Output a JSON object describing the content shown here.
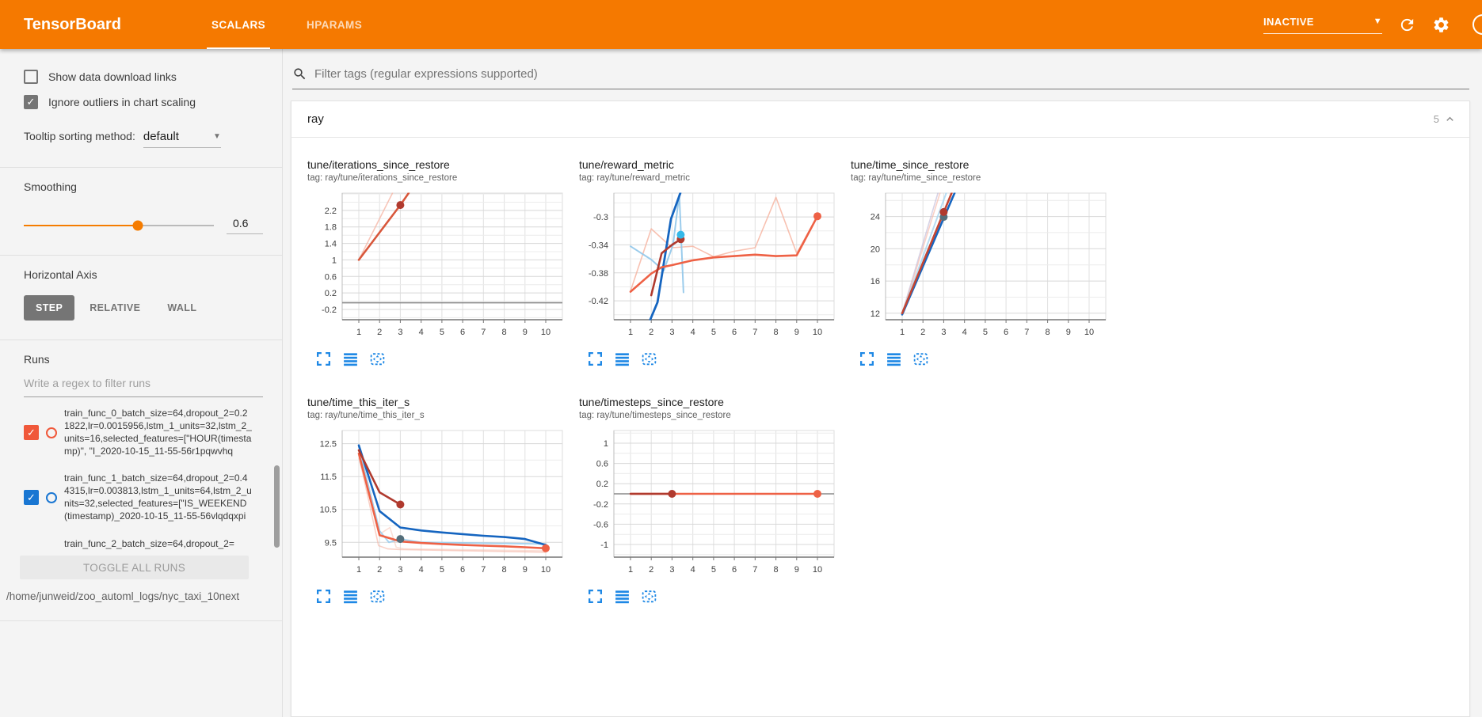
{
  "header": {
    "title": "TensorBoard",
    "tabs": [
      {
        "label": "SCALARS",
        "active": true
      },
      {
        "label": "HPARAMS",
        "active": false
      }
    ],
    "status": "INACTIVE"
  },
  "colors": {
    "header_bg": "#f57900",
    "accent_orange": "#f57c00",
    "icon_blue": "#1e88e5",
    "run0": "#ee6145",
    "run0_dark": "#b03a2e",
    "run1": "#1565c0",
    "run1_light": "#90c7ea"
  },
  "sidebar": {
    "checkboxes": [
      {
        "label": "Show data download links",
        "checked": false
      },
      {
        "label": "Ignore outliers in chart scaling",
        "checked": true
      }
    ],
    "tooltip_sorting": {
      "label": "Tooltip sorting method:",
      "value": "default"
    },
    "smoothing": {
      "label": "Smoothing",
      "value": "0.6",
      "percent": 60
    },
    "horizontal_axis": {
      "label": "Horizontal Axis",
      "options": [
        {
          "label": "STEP",
          "active": true
        },
        {
          "label": "RELATIVE",
          "active": false
        },
        {
          "label": "WALL",
          "active": false
        }
      ]
    },
    "runs": {
      "label": "Runs",
      "filter_placeholder": "Write a regex to filter runs",
      "items": [
        {
          "name": "train_func_0_batch_size=64,dropout_2=0.21822,lr=0.0015956,lstm_1_units=32,lstm_2_units=16,selected_features=[\"HOUR(timestamp)\", \"I_2020-10-15_11-55-56r1pqwvhq",
          "checked": true,
          "color": "#f0583a"
        },
        {
          "name": "train_func_1_batch_size=64,dropout_2=0.44315,lr=0.003813,lstm_1_units=64,lstm_2_units=32,selected_features=[\"IS_WEEKEND(timestamp)_2020-10-15_11-55-56vlqdqxpi",
          "checked": true,
          "color": "#1976d2"
        },
        {
          "name": "train_func_2_batch_size=64,dropout_2=",
          "checked": null,
          "color": "#9e9e9e"
        }
      ],
      "toggle_all_label": "TOGGLE ALL RUNS",
      "log_path": "/home/junweid/zoo_automl_logs/nyc_taxi_10next"
    }
  },
  "main": {
    "filter_placeholder": "Filter tags (regular expressions supported)",
    "section": {
      "title": "ray",
      "count": "5"
    }
  },
  "chart_data": [
    {
      "type": "line",
      "name": "tune/iterations_since_restore",
      "tag": "tag: ray/tune/iterations_since_restore",
      "xticks": [
        1,
        2,
        3,
        4,
        5,
        6,
        7,
        8,
        9,
        10
      ],
      "ylim": [
        -0.45,
        2.62
      ],
      "yticks": [
        2.2,
        1.8,
        1.4,
        1,
        0.6,
        0.2,
        -0.2
      ],
      "series": [
        {
          "name": "run0-unsmoothed",
          "color": "#f5b3a1",
          "width": 1.6,
          "opacity": 0.75,
          "x": [
            1,
            2.62
          ],
          "y": [
            1,
            2.62
          ]
        },
        {
          "name": "run0-smoothed",
          "color": "#d8573b",
          "width": 2.6,
          "opacity": 1,
          "x": [
            1,
            3,
            3.4
          ],
          "y": [
            1,
            2.33,
            2.62
          ],
          "dot": {
            "x": 3,
            "y": 2.33,
            "color": "#b03a2e"
          }
        },
        {
          "name": "flat-zero",
          "color": "#8a8a8a",
          "width": 1.6,
          "opacity": 1,
          "x": [
            0.2,
            10.8
          ],
          "y": [
            -0.04,
            -0.04
          ]
        }
      ]
    },
    {
      "type": "line",
      "name": "tune/reward_metric",
      "tag": "tag: ray/tune/reward_metric",
      "xticks": [
        1,
        2,
        3,
        4,
        5,
        6,
        7,
        8,
        9,
        10
      ],
      "ylim": [
        -0.447,
        -0.266
      ],
      "yticks": [
        -0.3,
        -0.34,
        -0.38,
        -0.42
      ],
      "series": [
        {
          "name": "run0-unsmoothed",
          "color": "#f6b29e",
          "width": 1.6,
          "opacity": 0.8,
          "x": [
            1,
            2,
            3,
            4,
            5,
            6,
            7,
            8,
            9,
            10
          ],
          "y": [
            -0.406,
            -0.317,
            -0.344,
            -0.342,
            -0.357,
            -0.349,
            -0.344,
            -0.272,
            -0.352,
            -0.299
          ]
        },
        {
          "name": "run1-unsmoothed",
          "color": "#90c7ea",
          "width": 2,
          "opacity": 0.9,
          "x": [
            1,
            2,
            2.6,
            3.05,
            3.35,
            3.55
          ],
          "y": [
            -0.342,
            -0.361,
            -0.377,
            -0.34,
            -0.268,
            -0.408
          ]
        },
        {
          "name": "run1-smoothed",
          "color": "#1565c0",
          "width": 2.8,
          "opacity": 1,
          "x": [
            1.95,
            2.3,
            2.95,
            3.4
          ],
          "y": [
            -0.447,
            -0.422,
            -0.303,
            -0.266
          ]
        },
        {
          "name": "run0-smoothed",
          "color": "#ee6145",
          "width": 2.6,
          "opacity": 1,
          "x": [
            1,
            2,
            2.5,
            3,
            4,
            5,
            6,
            7,
            8,
            9,
            10
          ],
          "y": [
            -0.407,
            -0.381,
            -0.372,
            -0.369,
            -0.362,
            -0.358,
            -0.356,
            -0.354,
            -0.356,
            -0.355,
            -0.299
          ],
          "dot": {
            "x": 10,
            "y": -0.299,
            "color": "#ee6145"
          }
        },
        {
          "name": "run0-smoothed-head",
          "color": "#b03a2e",
          "width": 2.6,
          "opacity": 1,
          "x": [
            2,
            2.5,
            3,
            3.42
          ],
          "y": [
            -0.412,
            -0.352,
            -0.34,
            -0.332
          ],
          "dot": {
            "x": 3.42,
            "y": -0.332,
            "color": "#b03a2e"
          }
        }
      ],
      "dots": [
        {
          "x": 3.42,
          "y": -0.3255,
          "color": "#35b8e8"
        }
      ]
    },
    {
      "type": "line",
      "name": "tune/time_since_restore",
      "tag": "tag: ray/tune/time_since_restore",
      "xticks": [
        1,
        2,
        3,
        4,
        5,
        6,
        7,
        8,
        9,
        10
      ],
      "ylim": [
        11.2,
        26.9
      ],
      "yticks": [
        24,
        20,
        16,
        12
      ],
      "series": [
        {
          "name": "faded-lavender",
          "color": "#b7aed2",
          "width": 1.6,
          "opacity": 0.55,
          "x": [
            1,
            2.72
          ],
          "y": [
            12,
            26.9
          ]
        },
        {
          "name": "run0-unsmoothed",
          "color": "#f5b3a1",
          "width": 1.6,
          "opacity": 0.6,
          "x": [
            1.02,
            2.82
          ],
          "y": [
            12,
            26.9
          ]
        },
        {
          "name": "run1-unsmoothed",
          "color": "#a6d4f0",
          "width": 2,
          "opacity": 0.8,
          "x": [
            1,
            3.12
          ],
          "y": [
            12,
            26.9
          ]
        },
        {
          "name": "run1-smoothed",
          "color": "#1565c0",
          "width": 2.6,
          "opacity": 1,
          "x": [
            1,
            3.52
          ],
          "y": [
            11.85,
            26.9
          ],
          "dot": {
            "x": 3,
            "y": 23.95,
            "color": "#546e7a"
          }
        },
        {
          "name": "run0-smoothed",
          "color": "#c44532",
          "width": 2.6,
          "opacity": 1,
          "x": [
            1,
            3.38
          ],
          "y": [
            12,
            26.9
          ],
          "dot": {
            "x": 3,
            "y": 24.55,
            "color": "#b03a2e"
          }
        }
      ]
    },
    {
      "type": "line",
      "name": "tune/time_this_iter_s",
      "tag": "tag: ray/tune/time_this_iter_s",
      "xticks": [
        1,
        2,
        3,
        4,
        5,
        6,
        7,
        8,
        9,
        10
      ],
      "ylim": [
        9.05,
        12.9
      ],
      "yticks": [
        12.5,
        11.5,
        10.5,
        9.5
      ],
      "series": [
        {
          "name": "run0-unsmoothed-a",
          "color": "#f5b3a1",
          "width": 1.6,
          "opacity": 0.6,
          "x": [
            1,
            1.95,
            2.4,
            3,
            10
          ],
          "y": [
            12.15,
            9.4,
            9.3,
            9.28,
            9.2
          ]
        },
        {
          "name": "run0-unsmoothed-b",
          "color": "#f5c0b0",
          "width": 1.6,
          "opacity": 0.5,
          "x": [
            1,
            2,
            2.5,
            2.8,
            3.2,
            10
          ],
          "y": [
            12.05,
            9.75,
            9.95,
            9.35,
            9.3,
            9.24
          ]
        },
        {
          "name": "run1-unsmoothed",
          "color": "#9fcfee",
          "width": 2,
          "opacity": 0.9,
          "x": [
            1,
            2,
            2.45,
            3,
            4,
            10
          ],
          "y": [
            12.4,
            9.85,
            9.5,
            9.6,
            9.5,
            9.45
          ]
        },
        {
          "name": "run1-smoothed",
          "color": "#1565c0",
          "width": 2.6,
          "opacity": 1,
          "x": [
            1,
            2,
            3,
            4,
            5,
            6,
            7,
            8,
            9,
            10
          ],
          "y": [
            12.45,
            10.45,
            9.95,
            9.86,
            9.8,
            9.75,
            9.7,
            9.66,
            9.6,
            9.42
          ]
        },
        {
          "name": "run0-smoothed",
          "color": "#ee6145",
          "width": 2.6,
          "opacity": 1,
          "x": [
            1,
            2,
            3,
            4,
            5,
            6,
            7,
            8,
            9,
            10
          ],
          "y": [
            12.2,
            9.72,
            9.53,
            9.48,
            9.45,
            9.42,
            9.4,
            9.38,
            9.35,
            9.32
          ],
          "dot": {
            "x": 10,
            "y": 9.32,
            "color": "#ee6145"
          }
        },
        {
          "name": "run0-smoothed-head",
          "color": "#b03a2e",
          "width": 2.6,
          "opacity": 1,
          "x": [
            1,
            2,
            3
          ],
          "y": [
            12.3,
            11.02,
            10.65
          ],
          "dot": {
            "x": 3,
            "y": 10.65,
            "color": "#b03a2e"
          }
        }
      ],
      "dots": [
        {
          "x": 3,
          "y": 9.6,
          "color": "#546e7a"
        }
      ]
    },
    {
      "type": "line",
      "name": "tune/timesteps_since_restore",
      "tag": "tag: ray/tune/timesteps_since_restore",
      "xticks": [
        1,
        2,
        3,
        4,
        5,
        6,
        7,
        8,
        9,
        10
      ],
      "ylim": [
        -1.25,
        1.25
      ],
      "yticks": [
        1,
        0.6,
        0.2,
        -0.2,
        -0.6,
        -1
      ],
      "series": [
        {
          "name": "flat-zero",
          "color": "#8a8a8a",
          "width": 1.5,
          "opacity": 1,
          "x": [
            0.2,
            10.8
          ],
          "y": [
            0,
            0
          ]
        },
        {
          "name": "run0-smoothed",
          "color": "#ee6145",
          "width": 2.4,
          "opacity": 1,
          "x": [
            1,
            10
          ],
          "y": [
            0,
            0
          ],
          "dot": {
            "x": 10,
            "y": 0,
            "color": "#ee6145"
          }
        },
        {
          "name": "run0-smoothed-head",
          "color": "#b03a2e",
          "width": 2.4,
          "opacity": 1,
          "x": [
            1,
            3
          ],
          "y": [
            0,
            0
          ],
          "dot": {
            "x": 3,
            "y": 0,
            "color": "#b03a2e"
          }
        }
      ]
    }
  ]
}
